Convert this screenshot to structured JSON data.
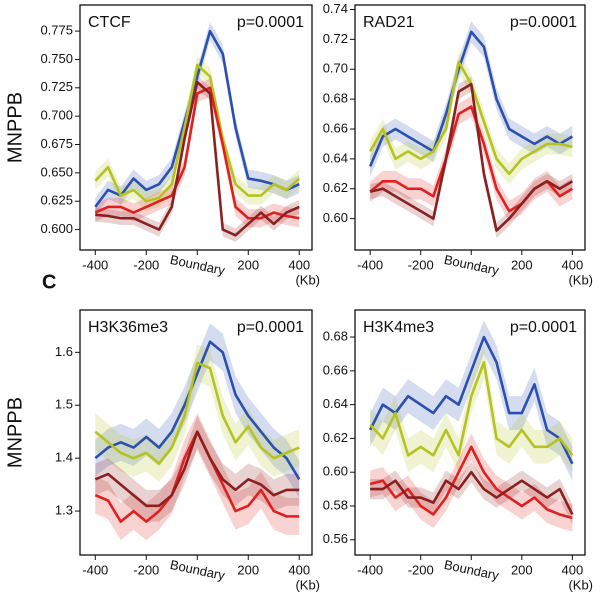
{
  "panel_label": "C",
  "chart_data": [
    {
      "type": "line",
      "title": "CTCF",
      "annotation": "p=0.0001",
      "ylabel": "MNPPB",
      "xlabel": "(Kb)",
      "x": [
        -400,
        -350,
        -300,
        -250,
        -200,
        -150,
        -100,
        -50,
        0,
        50,
        100,
        150,
        200,
        250,
        300,
        350,
        400
      ],
      "xlim": [
        -460,
        450
      ],
      "xticks": [
        -400,
        -200,
        {
          "value": 0,
          "label": "Boundary"
        },
        200,
        400
      ],
      "ylim": [
        0.582,
        0.798
      ],
      "yticks": [
        {
          "value": 0.6,
          "label": "0.600"
        },
        0.625,
        {
          "value": 0.65,
          "label": "0.650"
        },
        0.675,
        {
          "value": 0.7,
          "label": "0.700"
        },
        0.725,
        {
          "value": 0.75,
          "label": "0.750"
        },
        0.775
      ],
      "series": [
        {
          "color": "#2b50b0",
          "error": 0.008,
          "values": [
            0.62,
            0.635,
            0.63,
            0.645,
            0.635,
            0.64,
            0.655,
            0.695,
            0.735,
            0.775,
            0.755,
            0.69,
            0.645,
            0.643,
            0.64,
            0.635,
            0.64
          ]
        },
        {
          "color": "#b5c320",
          "error": 0.008,
          "values": [
            0.643,
            0.655,
            0.63,
            0.635,
            0.625,
            0.628,
            0.64,
            0.69,
            0.745,
            0.735,
            0.68,
            0.64,
            0.63,
            0.63,
            0.64,
            0.635,
            0.645
          ]
        },
        {
          "color": "#e0201e",
          "error": 0.008,
          "values": [
            0.615,
            0.62,
            0.62,
            0.615,
            0.62,
            0.625,
            0.63,
            0.655,
            0.72,
            0.725,
            0.675,
            0.62,
            0.61,
            0.61,
            0.615,
            0.612,
            0.61
          ]
        },
        {
          "color": "#8b2020",
          "error": 0.006,
          "values": [
            0.613,
            0.612,
            0.61,
            0.61,
            0.605,
            0.6,
            0.62,
            0.68,
            0.73,
            0.72,
            0.6,
            0.595,
            0.605,
            0.615,
            0.605,
            0.615,
            0.62
          ]
        }
      ]
    },
    {
      "type": "line",
      "title": "RAD21",
      "annotation": "p=0.0001",
      "xlabel": "(Kb)",
      "x": [
        -400,
        -350,
        -300,
        -250,
        -200,
        -150,
        -100,
        -50,
        0,
        50,
        100,
        150,
        200,
        250,
        300,
        350,
        400
      ],
      "xlim": [
        -460,
        450
      ],
      "xticks": [
        -400,
        -200,
        {
          "value": 0,
          "label": "Boundary"
        },
        200,
        400
      ],
      "ylim": [
        0.579,
        0.743
      ],
      "yticks": [
        {
          "value": 0.6,
          "label": "0.60"
        },
        0.62,
        0.64,
        0.66,
        0.68,
        {
          "value": 0.7,
          "label": "0.70"
        },
        0.72,
        0.74
      ],
      "series": [
        {
          "color": "#2b50b0",
          "error": 0.007,
          "values": [
            0.635,
            0.655,
            0.66,
            0.655,
            0.65,
            0.645,
            0.67,
            0.7,
            0.725,
            0.715,
            0.68,
            0.66,
            0.655,
            0.65,
            0.655,
            0.65,
            0.655
          ]
        },
        {
          "color": "#b5c320",
          "error": 0.007,
          "values": [
            0.645,
            0.66,
            0.64,
            0.645,
            0.64,
            0.645,
            0.66,
            0.705,
            0.69,
            0.665,
            0.64,
            0.63,
            0.64,
            0.645,
            0.65,
            0.65,
            0.648
          ]
        },
        {
          "color": "#e0201e",
          "error": 0.007,
          "values": [
            0.618,
            0.625,
            0.625,
            0.62,
            0.62,
            0.615,
            0.64,
            0.67,
            0.675,
            0.65,
            0.62,
            0.605,
            0.61,
            0.62,
            0.625,
            0.615,
            0.62
          ]
        },
        {
          "color": "#8b2020",
          "error": 0.005,
          "values": [
            0.618,
            0.62,
            0.615,
            0.61,
            0.605,
            0.6,
            0.64,
            0.685,
            0.69,
            0.63,
            0.592,
            0.6,
            0.61,
            0.62,
            0.625,
            0.62,
            0.625
          ]
        }
      ]
    },
    {
      "type": "line",
      "title": "H3K36me3",
      "annotation": "p=0.0001",
      "ylabel": "MNPPB",
      "xlabel": "(Kb)",
      "x": [
        -400,
        -350,
        -300,
        -250,
        -200,
        -150,
        -100,
        -50,
        0,
        50,
        100,
        150,
        200,
        250,
        300,
        350,
        400
      ],
      "xlim": [
        -460,
        450
      ],
      "xticks": [
        -400,
        -200,
        {
          "value": 0,
          "label": "Boundary"
        },
        200,
        400
      ],
      "ylim": [
        1.217,
        1.68
      ],
      "yticks": [
        1.3,
        1.4,
        1.5,
        1.6
      ],
      "series": [
        {
          "color": "#2b50b0",
          "error": 0.035,
          "values": [
            1.4,
            1.42,
            1.43,
            1.42,
            1.44,
            1.42,
            1.45,
            1.5,
            1.56,
            1.62,
            1.6,
            1.52,
            1.48,
            1.45,
            1.42,
            1.4,
            1.36
          ]
        },
        {
          "color": "#b5c320",
          "error": 0.035,
          "values": [
            1.45,
            1.43,
            1.41,
            1.4,
            1.41,
            1.39,
            1.42,
            1.48,
            1.58,
            1.57,
            1.48,
            1.43,
            1.46,
            1.42,
            1.4,
            1.41,
            1.42
          ]
        },
        {
          "color": "#e0201e",
          "error": 0.035,
          "values": [
            1.33,
            1.32,
            1.28,
            1.3,
            1.28,
            1.3,
            1.33,
            1.4,
            1.45,
            1.4,
            1.35,
            1.3,
            1.31,
            1.34,
            1.3,
            1.29,
            1.29
          ]
        },
        {
          "color": "#8b2020",
          "error": 0.03,
          "values": [
            1.36,
            1.37,
            1.35,
            1.33,
            1.31,
            1.31,
            1.33,
            1.38,
            1.45,
            1.4,
            1.36,
            1.34,
            1.36,
            1.35,
            1.33,
            1.34,
            1.34
          ]
        }
      ]
    },
    {
      "type": "line",
      "title": "H3K4me3",
      "annotation": "p=0.0001",
      "xlabel": "(Kb)",
      "x": [
        -400,
        -350,
        -300,
        -250,
        -200,
        -150,
        -100,
        -50,
        0,
        50,
        100,
        150,
        200,
        250,
        300,
        350,
        400
      ],
      "xlim": [
        -460,
        450
      ],
      "xticks": [
        -400,
        -200,
        {
          "value": 0,
          "label": "Boundary"
        },
        200,
        400
      ],
      "ylim": [
        0.551,
        0.696
      ],
      "yticks": [
        0.56,
        0.58,
        {
          "value": 0.6,
          "label": "0.60"
        },
        0.62,
        0.64,
        0.66,
        0.68
      ],
      "series": [
        {
          "color": "#2b50b0",
          "error": 0.01,
          "values": [
            0.625,
            0.64,
            0.635,
            0.645,
            0.64,
            0.635,
            0.645,
            0.64,
            0.66,
            0.68,
            0.665,
            0.635,
            0.635,
            0.652,
            0.625,
            0.62,
            0.605
          ]
        },
        {
          "color": "#b5c320",
          "error": 0.01,
          "values": [
            0.628,
            0.62,
            0.635,
            0.61,
            0.615,
            0.61,
            0.625,
            0.61,
            0.645,
            0.665,
            0.62,
            0.615,
            0.625,
            0.615,
            0.615,
            0.62,
            0.61
          ]
        },
        {
          "color": "#e0201e",
          "error": 0.008,
          "values": [
            0.593,
            0.595,
            0.585,
            0.59,
            0.58,
            0.575,
            0.585,
            0.6,
            0.615,
            0.6,
            0.59,
            0.585,
            0.58,
            0.585,
            0.578,
            0.575,
            0.573
          ]
        },
        {
          "color": "#8b2020",
          "error": 0.006,
          "values": [
            0.59,
            0.59,
            0.595,
            0.585,
            0.585,
            0.582,
            0.595,
            0.59,
            0.6,
            0.59,
            0.585,
            0.59,
            0.595,
            0.59,
            0.585,
            0.59,
            0.575
          ]
        }
      ]
    }
  ]
}
